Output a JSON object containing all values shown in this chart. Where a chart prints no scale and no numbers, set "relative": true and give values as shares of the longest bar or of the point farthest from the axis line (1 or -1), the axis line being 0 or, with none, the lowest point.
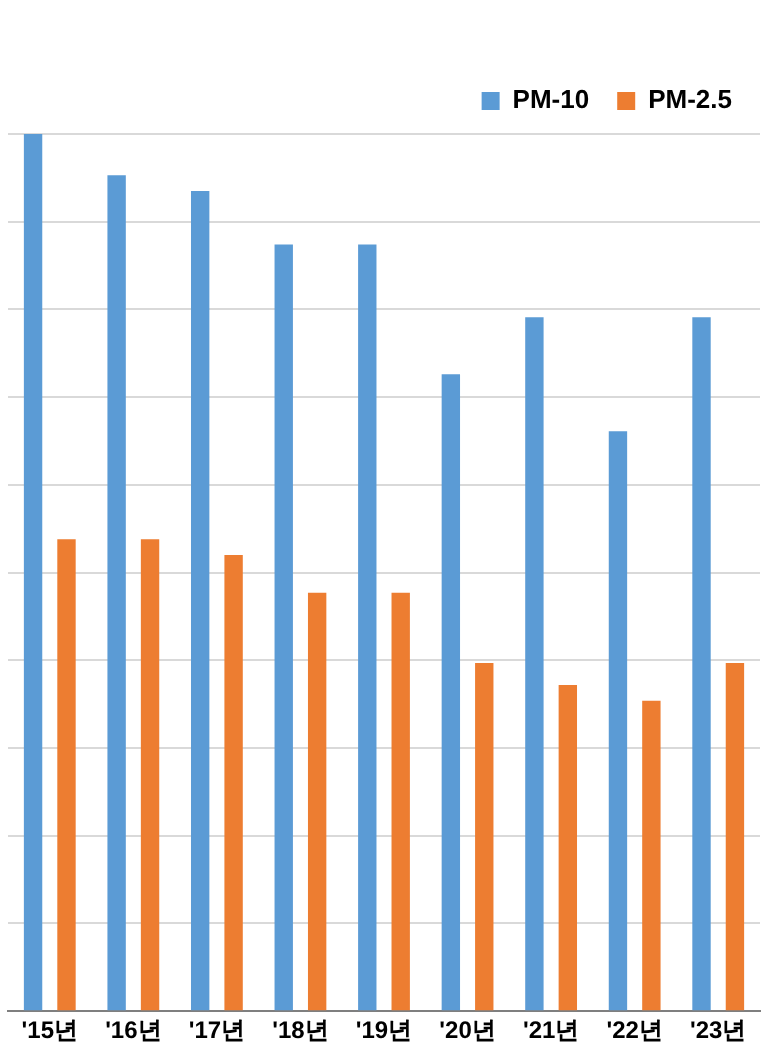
{
  "chart_data": {
    "type": "bar",
    "relative": true,
    "grid": "y",
    "legend": "top right",
    "categories": [
      "'15년",
      "'16년",
      "'17년",
      "'18년",
      "'19년",
      "'20년",
      "'21년",
      "'22년",
      "'23년"
    ],
    "series": [
      {
        "name": "PM-10",
        "color": "#5b9bd5",
        "values": [
          1,
          0.953,
          0.935,
          0.874,
          0.874,
          0.726,
          0.791,
          0.661,
          0.791
        ]
      },
      {
        "name": "PM-2.5",
        "color": "#ed7d31",
        "values": [
          0.538,
          0.538,
          0.52,
          0.477,
          0.477,
          0.397,
          0.372,
          0.354,
          0.397
        ]
      }
    ]
  }
}
